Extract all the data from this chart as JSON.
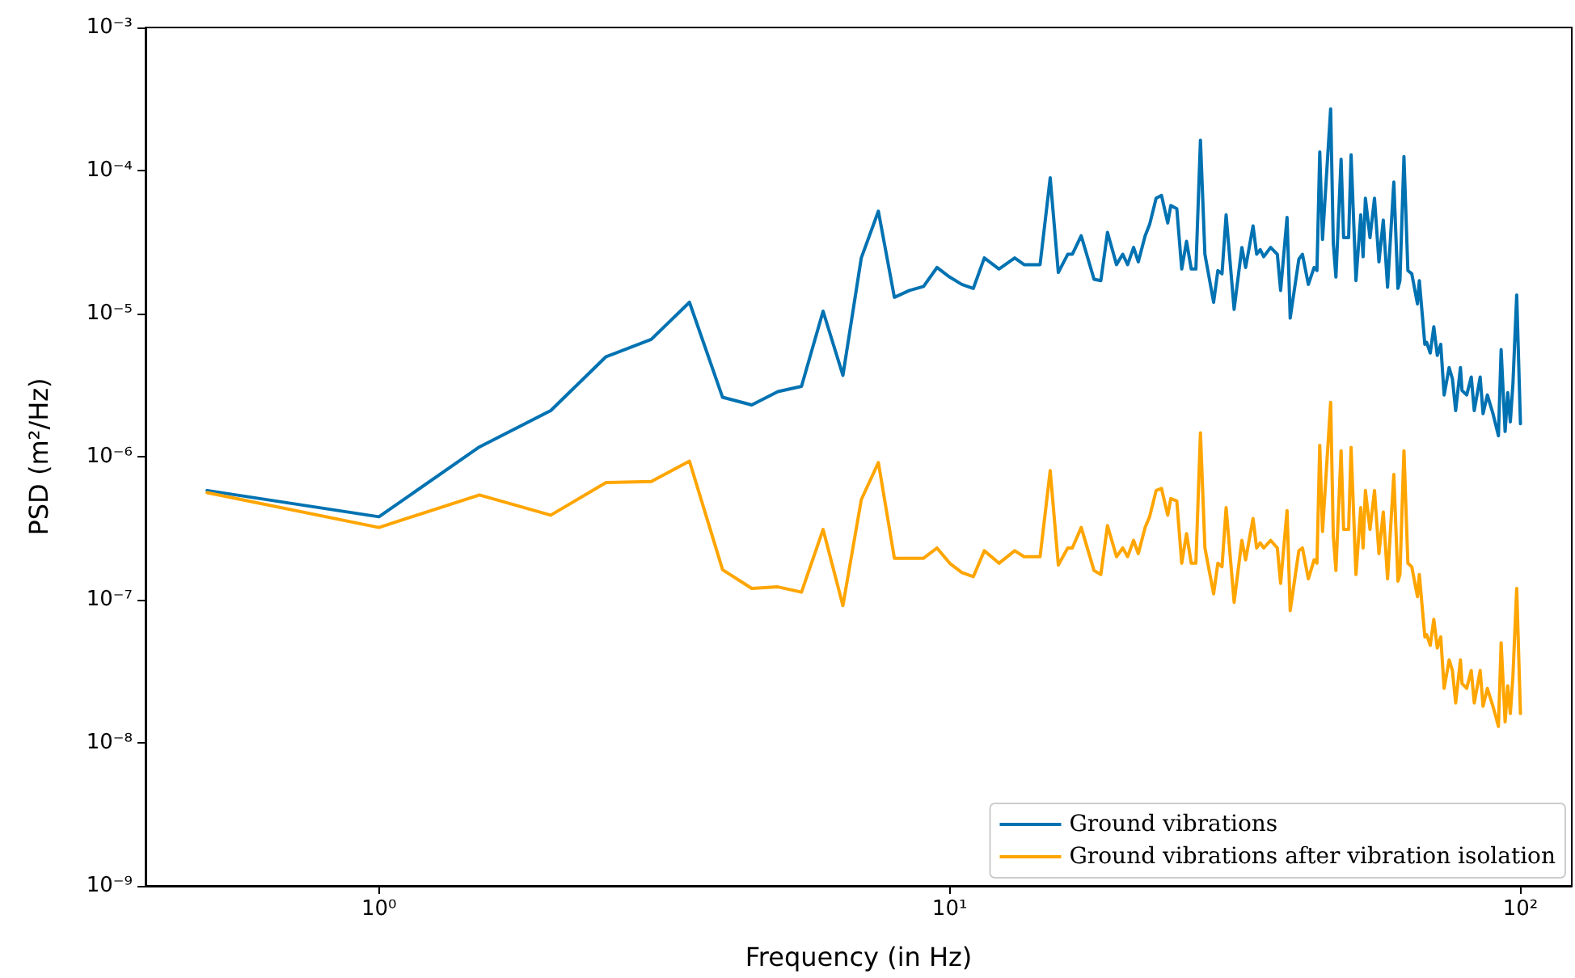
{
  "chart_data": {
    "type": "line",
    "xlabel": "Frequency (in Hz)",
    "ylabel": "PSD (m²/Hz)",
    "log": "xy",
    "grid": false,
    "legend": "bottom right",
    "marker": "none",
    "line_style": "solid",
    "xlim": [
      0.39,
      123
    ],
    "ylim": [
      1e-09,
      0.001
    ],
    "xticks": [
      {
        "value": 1,
        "label": "10⁰"
      },
      {
        "value": 10,
        "label": "10¹"
      },
      {
        "value": 100,
        "label": "10²"
      }
    ],
    "yticks": [
      {
        "value": 1e-09,
        "label": "10⁻⁹"
      },
      {
        "value": 1e-08,
        "label": "10⁻⁸"
      },
      {
        "value": 1e-07,
        "label": "10⁻⁷"
      },
      {
        "value": 1e-06,
        "label": "10⁻⁶"
      },
      {
        "value": 1e-05,
        "label": "10⁻⁵"
      },
      {
        "value": 0.0001,
        "label": "10⁻⁴"
      },
      {
        "value": 0.001,
        "label": "10⁻³"
      }
    ],
    "x": [
      0.5,
      1,
      1.5,
      2,
      2.5,
      3,
      3.5,
      4,
      4.5,
      5,
      5.5,
      6,
      6.5,
      7,
      7.5,
      8,
      8.5,
      9,
      9.5,
      10,
      10.5,
      11,
      11.5,
      12.2,
      13,
      13.5,
      14.4,
      15,
      15.5,
      16.1,
      16.4,
      17,
      17.9,
      18.4,
      18.9,
      19.6,
      20.1,
      20.5,
      21,
      21.4,
      22,
      22.4,
      23,
      23.5,
      24.1,
      24.4,
      25,
      25.5,
      26,
      26.5,
      27,
      27.5,
      28,
      29,
      29.5,
      30,
      30.5,
      31.5,
      32.5,
      33,
      34,
      34.5,
      35,
      35.5,
      36.5,
      37.5,
      38,
      39,
      39.5,
      40.9,
      41.5,
      42.5,
      43.5,
      44,
      44.5,
      45,
      46.5,
      47,
      47.5,
      48.5,
      49,
      50,
      50.5,
      51.5,
      52.5,
      53,
      53.5,
      54.5,
      55.5,
      56.5,
      57.5,
      58.5,
      60,
      61,
      61.5,
      62.5,
      63.5,
      64.5,
      66,
      66.5,
      68,
      68.5,
      69.5,
      70.5,
      71.5,
      72.5,
      73.5,
      75,
      76,
      77,
      78.5,
      79,
      80.5,
      82,
      83,
      85,
      86,
      87.5,
      89.5,
      91.5,
      92.5,
      94,
      95,
      96,
      97,
      98.5,
      100
    ],
    "series": [
      {
        "name": "Ground vibrations",
        "color": "#0072b2",
        "values": [
          5.8e-07,
          3.8e-07,
          1.17e-06,
          2.1e-06,
          5e-06,
          6.6e-06,
          1.2e-05,
          2.6e-06,
          2.3e-06,
          2.85e-06,
          3.1e-06,
          1.04e-05,
          3.7e-06,
          2.45e-05,
          5.2e-05,
          1.3e-05,
          1.45e-05,
          1.55e-05,
          2.1e-05,
          1.8e-05,
          1.6e-05,
          1.5e-05,
          2.45e-05,
          2.05e-05,
          2.45e-05,
          2.2e-05,
          2.2e-05,
          8.9e-05,
          1.94e-05,
          2.6e-05,
          2.6e-05,
          3.5e-05,
          1.74e-05,
          1.7e-05,
          3.7e-05,
          2.2e-05,
          2.6e-05,
          2.2e-05,
          2.9e-05,
          2.3e-05,
          3.5e-05,
          4.2e-05,
          6.4e-05,
          6.7e-05,
          4.3e-05,
          5.7e-05,
          5.4e-05,
          2.05e-05,
          3.2e-05,
          2.05e-05,
          2.05e-05,
          0.000163,
          2.6e-05,
          1.2e-05,
          2e-05,
          1.9e-05,
          4.9e-05,
          1.07e-05,
          2.9e-05,
          2.1e-05,
          4.1e-05,
          2.6e-05,
          2.8e-05,
          2.5e-05,
          2.9e-05,
          2.6e-05,
          1.45e-05,
          4.7e-05,
          9.3e-06,
          2.4e-05,
          2.6e-05,
          1.6e-05,
          2.1e-05,
          2e-05,
          0.000135,
          3.3e-05,
          0.00027,
          3.1e-05,
          1.8e-05,
          0.00012,
          3.4e-05,
          3.4e-05,
          0.000129,
          1.7e-05,
          4.9e-05,
          2.5e-05,
          6.4e-05,
          3.4e-05,
          6.4e-05,
          2.3e-05,
          4.5e-05,
          1.53e-05,
          8.3e-05,
          1.5e-05,
          1.7e-05,
          0.000125,
          2e-05,
          1.9e-05,
          1.17e-05,
          1.7e-05,
          6.1e-06,
          6.3e-06,
          5.3e-06,
          8.1e-06,
          5.1e-06,
          6.1e-06,
          2.7e-06,
          4.2e-06,
          3.5e-06,
          2.1e-06,
          4.2e-06,
          2.9e-06,
          2.7e-06,
          3.6e-06,
          2.1e-06,
          3.6e-06,
          2e-06,
          2.7e-06,
          2e-06,
          1.4e-06,
          5.6e-06,
          1.5e-06,
          2.8e-06,
          1.75e-06,
          3.2e-06,
          1.35e-05,
          1.7e-06
        ]
      },
      {
        "name": "Ground vibrations after vibration isolation",
        "color": "#ffa500",
        "values": [
          5.6e-07,
          3.2e-07,
          5.4e-07,
          3.9e-07,
          6.6e-07,
          6.7e-07,
          9.3e-07,
          1.62e-07,
          1.2e-07,
          1.23e-07,
          1.13e-07,
          3.1e-07,
          9.1e-08,
          5e-07,
          9.1e-07,
          1.95e-07,
          1.95e-07,
          1.95e-07,
          2.3e-07,
          1.8e-07,
          1.55e-07,
          1.45e-07,
          2.2e-07,
          1.8e-07,
          2.2e-07,
          2e-07,
          2e-07,
          8e-07,
          1.75e-07,
          2.3e-07,
          2.3e-07,
          3.2e-07,
          1.6e-07,
          1.5e-07,
          3.3e-07,
          2e-07,
          2.3e-07,
          2e-07,
          2.6e-07,
          2.1e-07,
          3.2e-07,
          3.8e-07,
          5.8e-07,
          6e-07,
          3.9e-07,
          5.1e-07,
          4.9e-07,
          1.8e-07,
          2.9e-07,
          1.8e-07,
          1.8e-07,
          1.47e-06,
          2.3e-07,
          1.1e-07,
          1.8e-07,
          1.7e-07,
          4.4e-07,
          9.6e-08,
          2.6e-07,
          1.9e-07,
          3.7e-07,
          2.3e-07,
          2.5e-07,
          2.3e-07,
          2.6e-07,
          2.3e-07,
          1.3e-07,
          4.2e-07,
          8.4e-08,
          2.2e-07,
          2.3e-07,
          1.4e-07,
          1.9e-07,
          1.8e-07,
          1.2e-06,
          3e-07,
          2.4e-06,
          2.8e-07,
          1.6e-07,
          1.1e-06,
          3.1e-07,
          3.1e-07,
          1.16e-06,
          1.5e-07,
          4.4e-07,
          2.3e-07,
          5.8e-07,
          3.1e-07,
          5.8e-07,
          2.1e-07,
          4.1e-07,
          1.4e-07,
          7.5e-07,
          1.35e-07,
          1.5e-07,
          1.1e-06,
          1.8e-07,
          1.7e-07,
          1.05e-07,
          1.5e-07,
          5.5e-08,
          5.7e-08,
          4.8e-08,
          7.3e-08,
          4.6e-08,
          5.5e-08,
          2.4e-08,
          3.8e-08,
          3.2e-08,
          1.9e-08,
          3.8e-08,
          2.6e-08,
          2.4e-08,
          3.2e-08,
          1.9e-08,
          3.2e-08,
          1.8e-08,
          2.4e-08,
          1.8e-08,
          1.3e-08,
          5e-08,
          1.4e-08,
          2.5e-08,
          1.6e-08,
          2.9e-08,
          1.2e-07,
          1.6e-08
        ]
      }
    ]
  }
}
